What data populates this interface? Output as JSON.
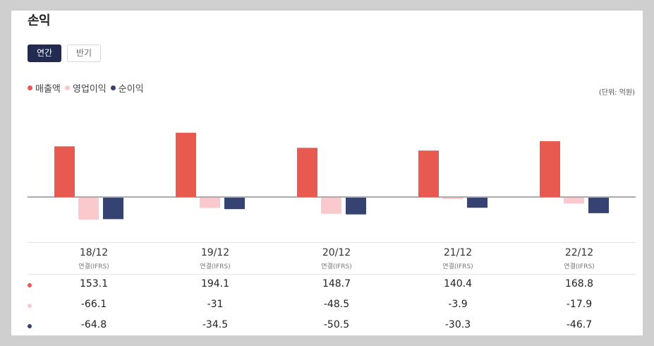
{
  "title": "손익",
  "tabs": [
    {
      "label": "연간",
      "active": true
    },
    {
      "label": "반기",
      "active": false
    }
  ],
  "unit": "(단위: 억원)",
  "colors": {
    "revenue": "#e85a50",
    "operating": "#f9c9cd",
    "net": "#354272"
  },
  "chart_data": {
    "type": "bar",
    "categories": [
      "18/12",
      "19/12",
      "20/12",
      "21/12",
      "22/12"
    ],
    "category_sub": "연결(IFRS)",
    "series": [
      {
        "name": "매출액",
        "values": [
          153.1,
          194.1,
          148.7,
          140.4,
          168.8
        ]
      },
      {
        "name": "영업이익",
        "values": [
          -66.1,
          -31,
          -48.5,
          -3.9,
          -17.9
        ]
      },
      {
        "name": "순이익",
        "values": [
          -64.8,
          -34.5,
          -50.5,
          -30.3,
          -46.7
        ]
      }
    ]
  },
  "table": {
    "rows": [
      [
        "153.1",
        "194.1",
        "148.7",
        "140.4",
        "168.8"
      ],
      [
        "-66.1",
        "-31",
        "-48.5",
        "-3.9",
        "-17.9"
      ],
      [
        "-64.8",
        "-34.5",
        "-50.5",
        "-30.3",
        "-46.7"
      ]
    ]
  }
}
